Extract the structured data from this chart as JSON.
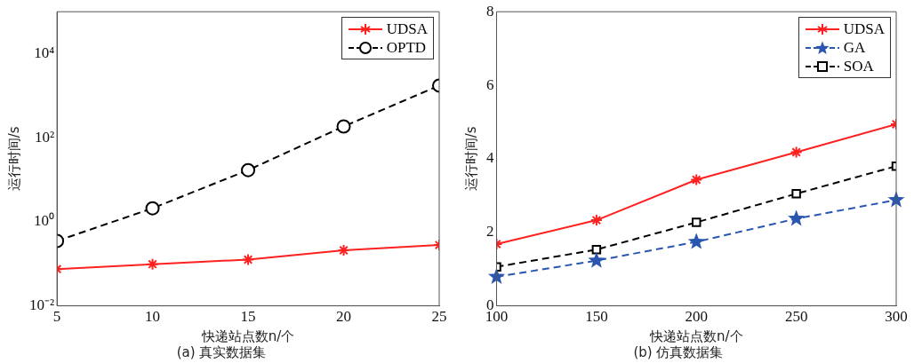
{
  "chart_data": [
    {
      "type": "line",
      "title": "(a) 真实数据集",
      "xlabel": "快递站点数n/个",
      "ylabel": "运行时间/s",
      "x": [
        5,
        10,
        15,
        20,
        25
      ],
      "xlim": [
        5,
        25
      ],
      "xticks": [
        5,
        10,
        15,
        20,
        25
      ],
      "log": "y",
      "ylim": [
        0.01,
        100000
      ],
      "yticks": [
        {
          "value": 0.01,
          "label": "10⁻²"
        },
        {
          "value": 1,
          "label": "10⁰"
        },
        {
          "value": 100,
          "label": "10²"
        },
        {
          "value": 10000,
          "label": "10⁴"
        }
      ],
      "legend": "top right",
      "grid": false,
      "series": [
        {
          "name": "UDSA",
          "color": "#ff2020",
          "marker": "cross",
          "line_style": "solid",
          "values": [
            0.075,
            0.098,
            0.126,
            0.21,
            0.28
          ]
        },
        {
          "name": "OPTD",
          "color": "#000000",
          "marker": "circle",
          "line_style": "dashed",
          "values": [
            0.35,
            2.1,
            17,
            186,
            1750
          ]
        }
      ]
    },
    {
      "type": "line",
      "title": "(b) 仿真数据集",
      "xlabel": "快递站点数n/个",
      "ylabel": "运行时间/s",
      "x": [
        100,
        150,
        200,
        250,
        300
      ],
      "xlim": [
        100,
        300
      ],
      "xticks": [
        100,
        150,
        200,
        250,
        300
      ],
      "ylim": [
        0,
        8
      ],
      "yticks": [
        0,
        2,
        4,
        6,
        8
      ],
      "legend": "top right",
      "grid": false,
      "series": [
        {
          "name": "UDSA",
          "color": "#ff2020",
          "marker": "cross",
          "line_style": "solid",
          "values": [
            1.68,
            2.33,
            3.43,
            4.18,
            4.94
          ]
        },
        {
          "name": "GA",
          "color": "#2a56b0",
          "marker": "star",
          "line_style": "dashed",
          "values": [
            0.79,
            1.23,
            1.74,
            2.37,
            2.88
          ]
        },
        {
          "name": "SOA",
          "color": "#000000",
          "marker": "square",
          "line_style": "dashed",
          "values": [
            1.06,
            1.53,
            2.27,
            3.05,
            3.8
          ]
        }
      ]
    }
  ]
}
